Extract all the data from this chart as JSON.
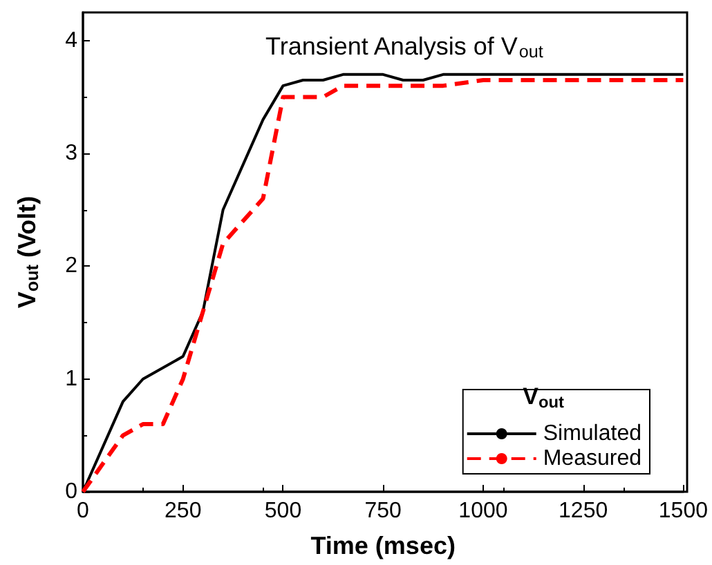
{
  "chart_data": {
    "type": "line",
    "title": "Transient Analysis of V$_{out}$",
    "xlabel": "Time (msec)",
    "ylabel": "V$_{out}$ (Volt)",
    "legend_title": "V$_{out}$",
    "xlim": [
      0,
      1500
    ],
    "xticks": [
      0,
      250,
      500,
      750,
      1000,
      1250,
      1500
    ],
    "ylim": [
      0,
      4.25
    ],
    "yticks": [
      0,
      1,
      2,
      3,
      4
    ],
    "grid": false,
    "legend": "bottom right",
    "marker": "none",
    "series": [
      {
        "name": "Simulated",
        "color": "#000000",
        "line_style": "solid",
        "x": [
          0,
          100,
          150,
          250,
          300,
          350,
          450,
          500,
          550,
          600,
          650,
          750,
          800,
          850,
          900,
          1500
        ],
        "values": [
          0,
          0.8,
          1.0,
          1.2,
          1.6,
          2.5,
          3.3,
          3.6,
          3.65,
          3.65,
          3.7,
          3.7,
          3.65,
          3.65,
          3.7,
          3.7
        ]
      },
      {
        "name": "Measured",
        "color": "#ff0000",
        "line_style": "dashed",
        "x": [
          0,
          100,
          150,
          200,
          250,
          300,
          350,
          450,
          500,
          600,
          650,
          900,
          1000,
          1500
        ],
        "values": [
          0,
          0.5,
          0.6,
          0.6,
          1.0,
          1.6,
          2.2,
          2.6,
          3.5,
          3.5,
          3.6,
          3.6,
          3.65,
          3.65
        ]
      }
    ]
  }
}
